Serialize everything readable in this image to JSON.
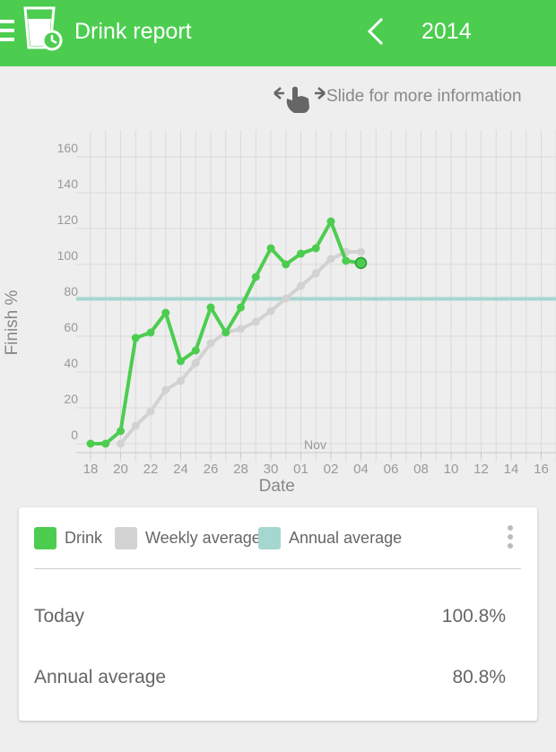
{
  "app": {
    "title": "Drink report",
    "year": "2014",
    "accent": "#4ccd50"
  },
  "hint": {
    "text": "Slide for more information",
    "icon": "swipe-hand-icon"
  },
  "chart_data": {
    "type": "line",
    "ylabel": "Finish %",
    "xlabel": "Date",
    "ylim": [
      0,
      170
    ],
    "yticks": [
      0,
      20,
      40,
      60,
      80,
      100,
      120,
      140,
      160
    ],
    "xticks": [
      "18",
      "20",
      "22",
      "24",
      "26",
      "28",
      "30",
      "01",
      "02",
      "04",
      "06",
      "08",
      "10",
      "12",
      "14",
      "16"
    ],
    "month_label": "Nov",
    "grid": true,
    "series": [
      {
        "name": "Drink",
        "color": "#4ccd50",
        "points": [
          [
            0,
            0
          ],
          [
            1,
            0
          ],
          [
            2,
            7
          ],
          [
            3,
            59
          ],
          [
            4,
            62
          ],
          [
            5,
            73
          ],
          [
            6,
            46
          ],
          [
            7,
            52
          ],
          [
            8,
            76
          ],
          [
            9,
            62
          ],
          [
            10,
            76
          ],
          [
            11,
            93
          ],
          [
            12,
            109
          ],
          [
            13,
            100
          ],
          [
            14,
            106
          ],
          [
            15,
            109
          ],
          [
            16,
            124
          ],
          [
            17,
            102
          ],
          [
            18,
            100.8
          ]
        ]
      },
      {
        "name": "Weekly average",
        "color": "#d2d2d2",
        "points": [
          [
            2,
            0
          ],
          [
            3,
            10
          ],
          [
            4,
            18
          ],
          [
            5,
            30
          ],
          [
            6,
            35
          ],
          [
            7,
            45
          ],
          [
            8,
            56
          ],
          [
            9,
            62
          ],
          [
            10,
            64
          ],
          [
            11,
            68
          ],
          [
            12,
            74
          ],
          [
            13,
            81
          ],
          [
            14,
            88
          ],
          [
            15,
            95
          ],
          [
            16,
            103
          ],
          [
            17,
            107
          ],
          [
            18,
            107
          ]
        ]
      },
      {
        "name": "Annual average",
        "color": "#a6d6d0",
        "value": 80.8
      }
    ]
  },
  "legend": [
    {
      "label": "Drink",
      "color": "#4ccd50"
    },
    {
      "label": "Weekly average",
      "color": "#d2d2d2"
    },
    {
      "label": "Annual average",
      "color": "#a6d6d0"
    }
  ],
  "stats": [
    {
      "label": "Today",
      "value": "100.8%"
    },
    {
      "label": "Annual average",
      "value": "80.8%"
    }
  ]
}
